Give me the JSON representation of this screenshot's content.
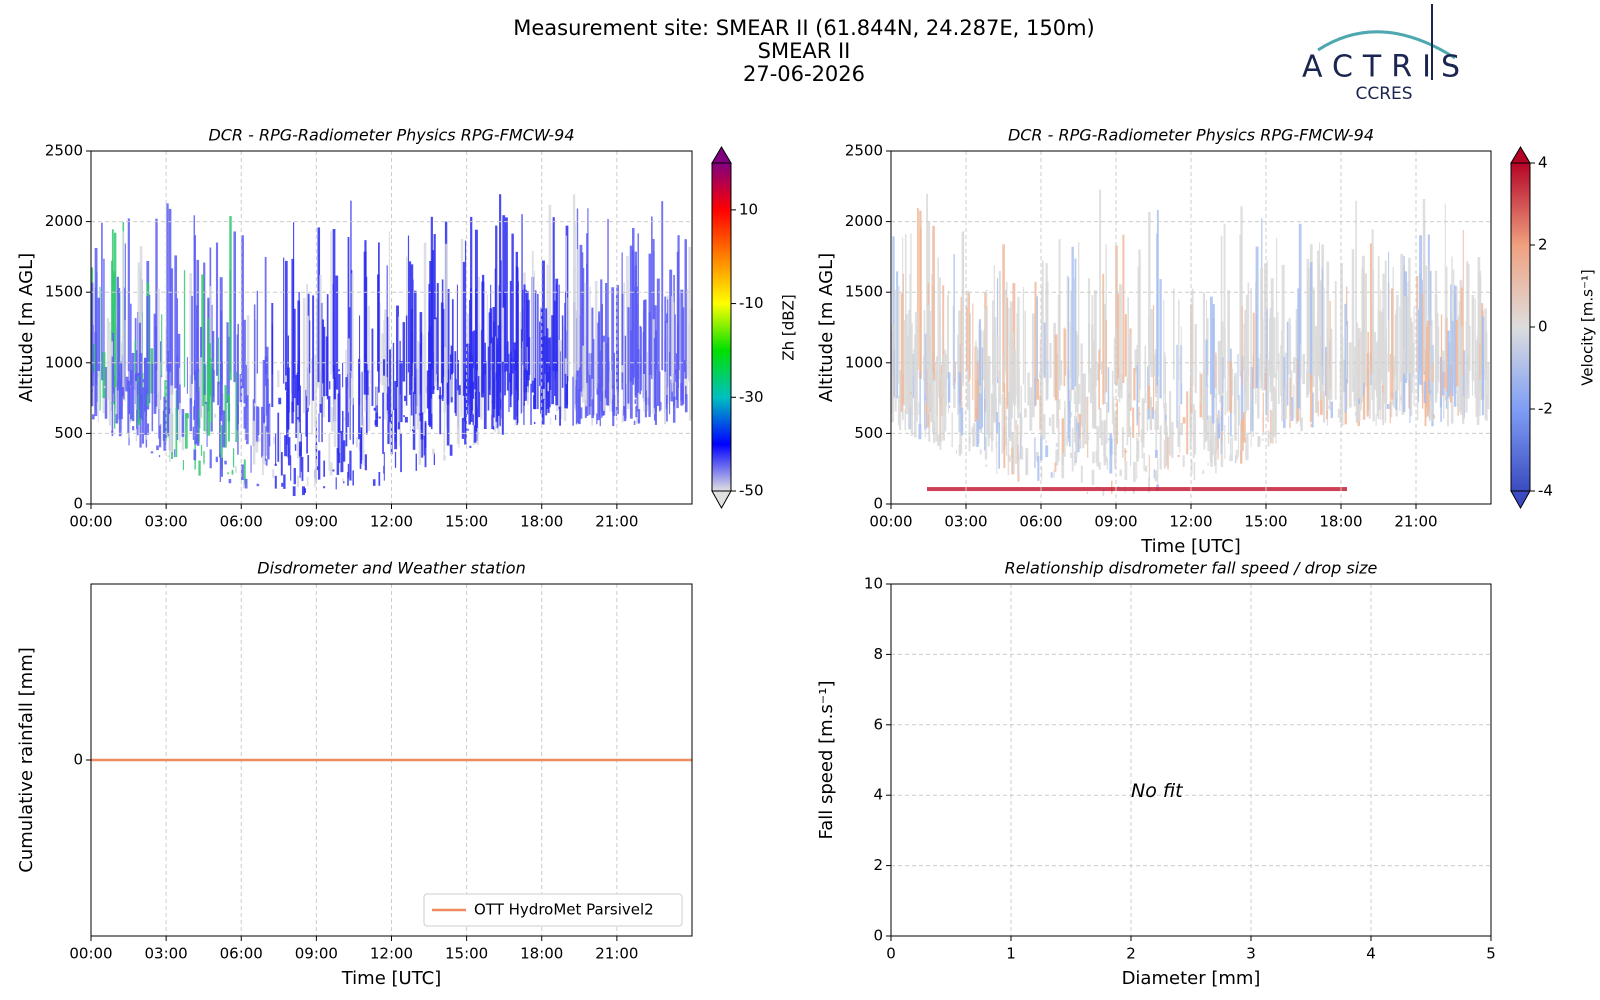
{
  "header": {
    "title": "Measurement site: SMEAR II (61.844N, 24.287E, 150m)",
    "subtitle": "SMEAR II",
    "date": "27-06-2026",
    "logo": {
      "name": "ACTRIS",
      "sub": "CCRES"
    }
  },
  "chart_data": [
    {
      "type": "heatmap",
      "title": "DCR - RPG-Radiometer Physics RPG-FMCW-94",
      "y_label": "Altitude [m AGL]",
      "xlim": [
        0,
        24
      ],
      "xticks": [
        {
          "value": 0,
          "label": "00:00"
        },
        {
          "value": 3,
          "label": "03:00"
        },
        {
          "value": 6,
          "label": "06:00"
        },
        {
          "value": 9,
          "label": "09:00"
        },
        {
          "value": 12,
          "label": "12:00"
        },
        {
          "value": 15,
          "label": "15:00"
        },
        {
          "value": 18,
          "label": "18:00"
        },
        {
          "value": 21,
          "label": "21:00"
        }
      ],
      "ylim": [
        0,
        2500
      ],
      "yticks": [
        0,
        500,
        1000,
        1500,
        2000,
        2500
      ],
      "grid": true,
      "colorbar": {
        "label": "Zh [dBZ]",
        "lim": [
          -50,
          20
        ],
        "ticks": [
          -50,
          -30,
          -10,
          10
        ],
        "colors": [
          "#e0e0e0",
          "#0000ff",
          "#00c0c0",
          "#00e000",
          "#ffff00",
          "#ff8000",
          "#ff0000",
          "#800080"
        ]
      }
    },
    {
      "type": "heatmap",
      "title": "DCR - RPG-Radiometer Physics RPG-FMCW-94",
      "x_label": "Time [UTC]",
      "y_label": "Altitude [m AGL]",
      "xlim": [
        0,
        24
      ],
      "xticks": [
        {
          "value": 0,
          "label": "00:00"
        },
        {
          "value": 3,
          "label": "03:00"
        },
        {
          "value": 6,
          "label": "06:00"
        },
        {
          "value": 9,
          "label": "09:00"
        },
        {
          "value": 12,
          "label": "12:00"
        },
        {
          "value": 15,
          "label": "15:00"
        },
        {
          "value": 18,
          "label": "18:00"
        },
        {
          "value": 21,
          "label": "21:00"
        }
      ],
      "ylim": [
        0,
        2500
      ],
      "yticks": [
        0,
        500,
        1000,
        1500,
        2000,
        2500
      ],
      "grid": true,
      "colorbar": {
        "label": "Velocity [m.s⁻¹]",
        "lim": [
          -4,
          4
        ],
        "ticks": [
          -4,
          -2,
          0,
          2,
          4
        ],
        "colors": [
          "#3b4cc0",
          "#7f9ef5",
          "#dddddd",
          "#f0a07f",
          "#b40426"
        ]
      }
    },
    {
      "type": "line",
      "title": "Disdrometer and Weather station",
      "x_label": "Time [UTC]",
      "y_label": "Cumulative rainfall [mm]",
      "xlim": [
        0,
        24
      ],
      "xticks": [
        {
          "value": 0,
          "label": "00:00"
        },
        {
          "value": 3,
          "label": "03:00"
        },
        {
          "value": 6,
          "label": "06:00"
        },
        {
          "value": 9,
          "label": "09:00"
        },
        {
          "value": 12,
          "label": "12:00"
        },
        {
          "value": 15,
          "label": "15:00"
        },
        {
          "value": 18,
          "label": "18:00"
        },
        {
          "value": 21,
          "label": "21:00"
        }
      ],
      "ylim": [
        -0.055,
        0.055
      ],
      "yticks": [
        0
      ],
      "grid": true,
      "legend": "lower right",
      "series": [
        {
          "name": "OTT HydroMet Parsivel2",
          "color": "#ee8a5e",
          "x": [
            0,
            24
          ],
          "values": [
            0,
            0
          ]
        }
      ]
    },
    {
      "type": "scatter",
      "title": "Relationship disdrometer fall speed / drop size",
      "x_label": "Diameter [mm]",
      "y_label": "Fall speed [m.s⁻¹]",
      "xlim": [
        0,
        5
      ],
      "xticks": [
        0,
        1,
        2,
        3,
        4,
        5
      ],
      "ylim": [
        0,
        10
      ],
      "yticks": [
        0,
        2,
        4,
        6,
        8,
        10
      ],
      "grid": true,
      "annotation": "No fit"
    }
  ]
}
